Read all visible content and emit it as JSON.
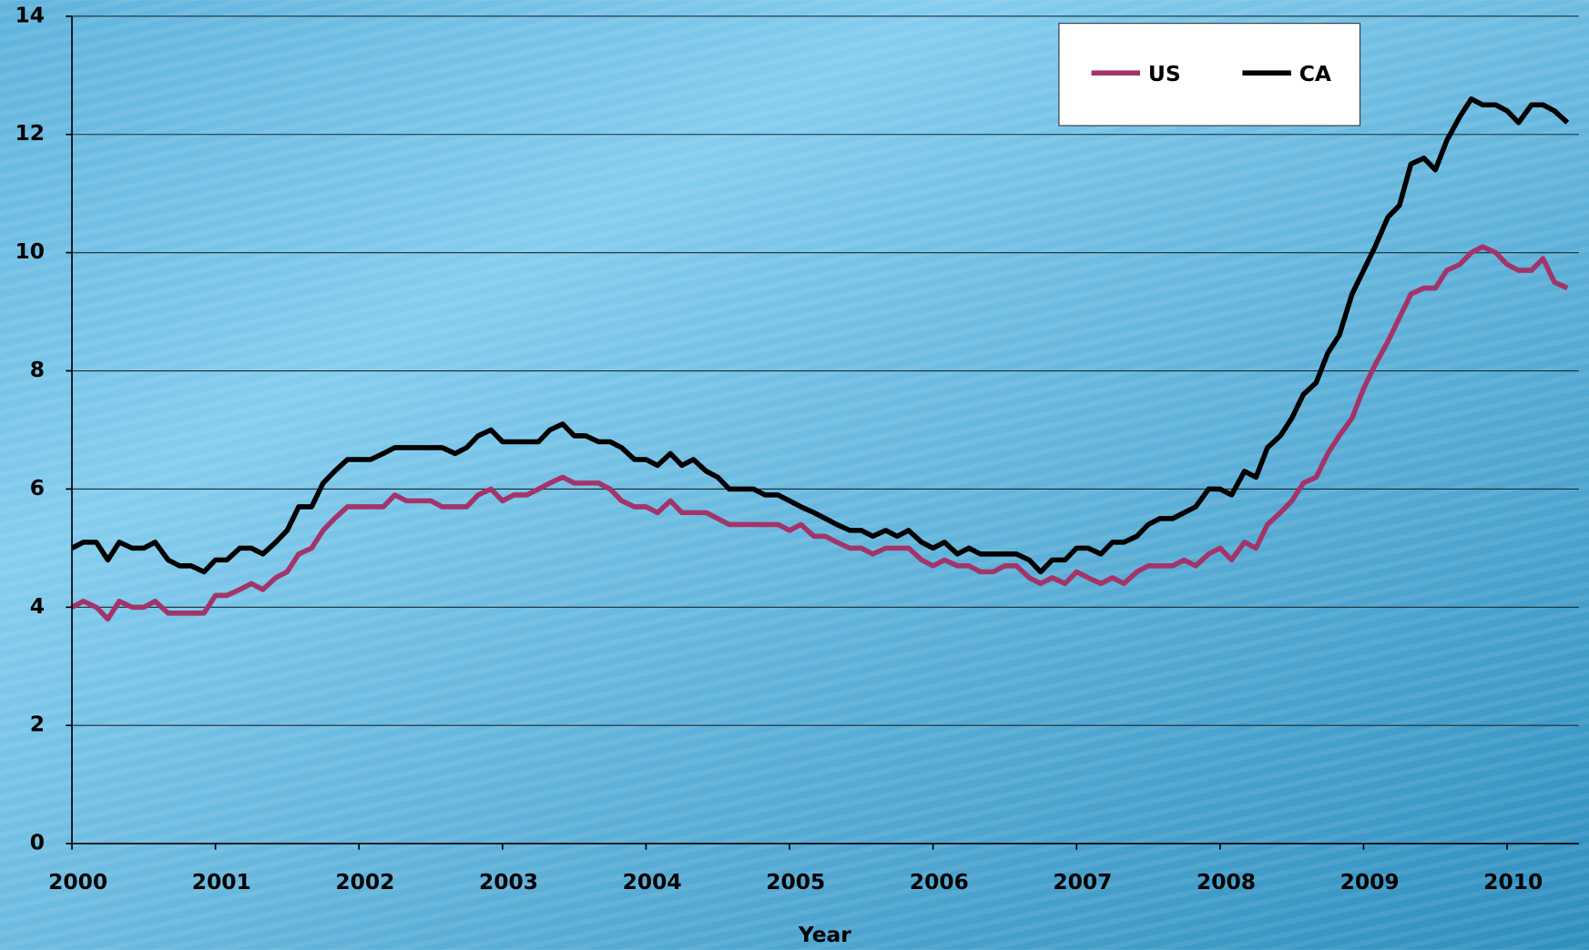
{
  "chart_data": {
    "type": "line",
    "x_label": "Year",
    "x": [
      2000,
      2000.08,
      2000.17,
      2000.25,
      2000.33,
      2000.42,
      2000.5,
      2000.58,
      2000.67,
      2000.75,
      2000.83,
      2000.92,
      2001,
      2001.08,
      2001.17,
      2001.25,
      2001.33,
      2001.42,
      2001.5,
      2001.58,
      2001.67,
      2001.75,
      2001.83,
      2001.92,
      2002,
      2002.08,
      2002.17,
      2002.25,
      2002.33,
      2002.42,
      2002.5,
      2002.58,
      2002.67,
      2002.75,
      2002.83,
      2002.92,
      2003,
      2003.08,
      2003.17,
      2003.25,
      2003.33,
      2003.42,
      2003.5,
      2003.58,
      2003.67,
      2003.75,
      2003.83,
      2003.92,
      2004,
      2004.08,
      2004.17,
      2004.25,
      2004.33,
      2004.42,
      2004.5,
      2004.58,
      2004.67,
      2004.75,
      2004.83,
      2004.92,
      2005,
      2005.08,
      2005.17,
      2005.25,
      2005.33,
      2005.42,
      2005.5,
      2005.58,
      2005.67,
      2005.75,
      2005.83,
      2005.92,
      2006,
      2006.08,
      2006.17,
      2006.25,
      2006.33,
      2006.42,
      2006.5,
      2006.58,
      2006.67,
      2006.75,
      2006.83,
      2006.92,
      2007,
      2007.08,
      2007.17,
      2007.25,
      2007.33,
      2007.42,
      2007.5,
      2007.58,
      2007.67,
      2007.75,
      2007.83,
      2007.92,
      2008,
      2008.08,
      2008.17,
      2008.25,
      2008.33,
      2008.42,
      2008.5,
      2008.58,
      2008.67,
      2008.75,
      2008.83,
      2008.92,
      2009,
      2009.08,
      2009.17,
      2009.25,
      2009.33,
      2009.42,
      2009.5,
      2009.58,
      2009.67,
      2009.75,
      2009.83,
      2009.92,
      2010,
      2010.08,
      2010.17,
      2010.25,
      2010.33,
      2010.42
    ],
    "series": [
      {
        "name": "US",
        "color": "#a3346a",
        "values": [
          4.0,
          4.1,
          4.0,
          3.8,
          4.1,
          4.0,
          4.0,
          4.1,
          3.9,
          3.9,
          3.9,
          3.9,
          4.2,
          4.2,
          4.3,
          4.4,
          4.3,
          4.5,
          4.6,
          4.9,
          5.0,
          5.3,
          5.5,
          5.7,
          5.7,
          5.7,
          5.7,
          5.9,
          5.8,
          5.8,
          5.8,
          5.7,
          5.7,
          5.7,
          5.9,
          6.0,
          5.8,
          5.9,
          5.9,
          6.0,
          6.1,
          6.2,
          6.1,
          6.1,
          6.1,
          6.0,
          5.8,
          5.7,
          5.7,
          5.6,
          5.8,
          5.6,
          5.6,
          5.6,
          5.5,
          5.4,
          5.4,
          5.4,
          5.4,
          5.4,
          5.3,
          5.4,
          5.2,
          5.2,
          5.1,
          5.0,
          5.0,
          4.9,
          5.0,
          5.0,
          5.0,
          4.8,
          4.7,
          4.8,
          4.7,
          4.7,
          4.6,
          4.6,
          4.7,
          4.7,
          4.5,
          4.4,
          4.5,
          4.4,
          4.6,
          4.5,
          4.4,
          4.5,
          4.4,
          4.6,
          4.7,
          4.7,
          4.7,
          4.8,
          4.7,
          4.9,
          5.0,
          4.8,
          5.1,
          5.0,
          5.4,
          5.6,
          5.8,
          6.1,
          6.2,
          6.6,
          6.9,
          7.2,
          7.7,
          8.1,
          8.5,
          8.9,
          9.3,
          9.4,
          9.4,
          9.7,
          9.8,
          10.0,
          10.1,
          10.0,
          9.8,
          9.7,
          9.7,
          9.9,
          9.5,
          9.4
        ]
      },
      {
        "name": "CA",
        "color": "#000000",
        "values": [
          5.0,
          5.1,
          5.1,
          4.8,
          5.1,
          5.0,
          5.0,
          5.1,
          4.8,
          4.7,
          4.7,
          4.6,
          4.8,
          4.8,
          5.0,
          5.0,
          4.9,
          5.1,
          5.3,
          5.7,
          5.7,
          6.1,
          6.3,
          6.5,
          6.5,
          6.5,
          6.6,
          6.7,
          6.7,
          6.7,
          6.7,
          6.7,
          6.6,
          6.7,
          6.9,
          7.0,
          6.8,
          6.8,
          6.8,
          6.8,
          7.0,
          7.1,
          6.9,
          6.9,
          6.8,
          6.8,
          6.7,
          6.5,
          6.5,
          6.4,
          6.6,
          6.4,
          6.5,
          6.3,
          6.2,
          6.0,
          6.0,
          6.0,
          5.9,
          5.9,
          5.8,
          5.7,
          5.6,
          5.5,
          5.4,
          5.3,
          5.3,
          5.2,
          5.3,
          5.2,
          5.3,
          5.1,
          5.0,
          5.1,
          4.9,
          5.0,
          4.9,
          4.9,
          4.9,
          4.9,
          4.8,
          4.6,
          4.8,
          4.8,
          5.0,
          5.0,
          4.9,
          5.1,
          5.1,
          5.2,
          5.4,
          5.5,
          5.5,
          5.6,
          5.7,
          6.0,
          6.0,
          5.9,
          6.3,
          6.2,
          6.7,
          6.9,
          7.2,
          7.6,
          7.8,
          8.3,
          8.6,
          9.3,
          9.7,
          10.1,
          10.6,
          10.8,
          11.5,
          11.6,
          11.4,
          11.9,
          12.3,
          12.6,
          12.5,
          12.5,
          12.4,
          12.2,
          12.5,
          12.5,
          12.4,
          12.2
        ]
      }
    ],
    "xlim": [
      2000,
      2010.5
    ],
    "xticks": [
      2000,
      2001,
      2002,
      2003,
      2004,
      2005,
      2006,
      2007,
      2008,
      2009,
      2010
    ],
    "ylim": [
      0,
      14
    ],
    "yticks": [
      0,
      2,
      4,
      6,
      8,
      10,
      12,
      14
    ],
    "grid": true,
    "legend": "top-right"
  }
}
